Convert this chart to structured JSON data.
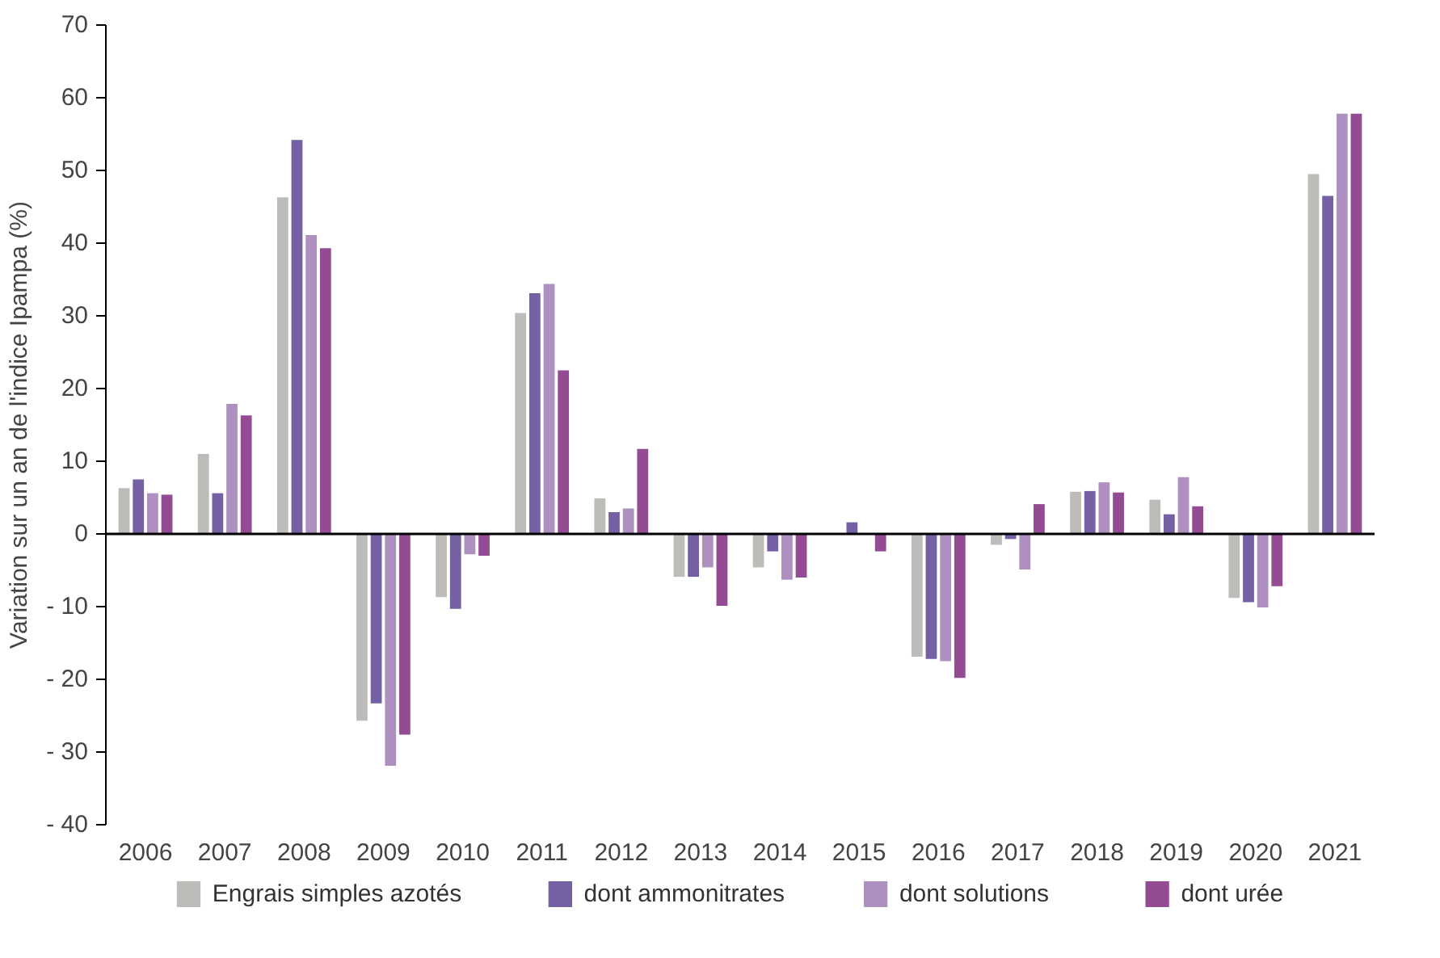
{
  "chart_data": {
    "type": "bar",
    "ylabel": "Variation sur un an de l'indice Ipampa (%)",
    "categories": [
      "2006",
      "2007",
      "2008",
      "2009",
      "2010",
      "2011",
      "2012",
      "2013",
      "2014",
      "2015",
      "2016",
      "2017",
      "2018",
      "2019",
      "2020",
      "2021"
    ],
    "series": [
      {
        "name": "Engrais simples azotés",
        "color": "#bdbcb8",
        "values": [
          6.3,
          11,
          46.3,
          -25.7,
          -8.7,
          30.4,
          4.9,
          -5.9,
          -4.6,
          null,
          -16.9,
          -1.5,
          5.8,
          4.7,
          -8.8,
          49.5
        ]
      },
      {
        "name": "dont ammonitrates",
        "color": "#7560a3",
        "values": [
          7.5,
          5.6,
          54.2,
          -23.3,
          -10.3,
          33.1,
          3.0,
          -5.9,
          -2.4,
          1.6,
          -17.2,
          -0.7,
          5.9,
          2.7,
          -9.4,
          46.5
        ]
      },
      {
        "name": "dont solutions",
        "color": "#ad90c0",
        "values": [
          5.6,
          17.9,
          41.1,
          -31.9,
          -2.8,
          34.4,
          3.5,
          -4.6,
          -6.3,
          null,
          -17.5,
          -4.9,
          7.1,
          7.8,
          -10.1,
          57.8
        ]
      },
      {
        "name": "dont urée",
        "color": "#934c93",
        "values": [
          5.4,
          16.3,
          39.3,
          -27.6,
          -3.0,
          22.5,
          11.7,
          -9.9,
          -6.0,
          -2.4,
          -19.8,
          4.1,
          5.7,
          3.8,
          -7.2,
          57.8
        ]
      }
    ],
    "ylim": [
      -40,
      70
    ],
    "yticks": [
      {
        "value": -40,
        "label": "- 40"
      },
      {
        "value": -30,
        "label": "- 30"
      },
      {
        "value": -20,
        "label": "- 20"
      },
      {
        "value": -10,
        "label": "- 10"
      },
      0,
      10,
      20,
      30,
      40,
      50,
      60,
      70
    ],
    "ref_lines": [
      {
        "axis": "y",
        "value": 0,
        "color": "#000000"
      }
    ],
    "grid": false,
    "legend": "bottom"
  }
}
